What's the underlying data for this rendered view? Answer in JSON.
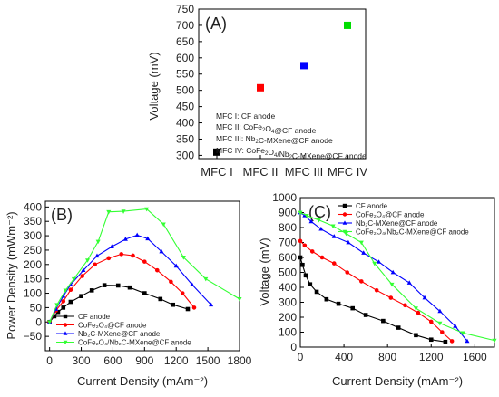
{
  "chart_data": [
    {
      "panel_label": "(A)",
      "type": "scatter",
      "categories": [
        "MFC I",
        "MFC II",
        "MFC III",
        "MFC IV"
      ],
      "values": [
        310,
        508,
        576,
        700
      ],
      "marker_colors": [
        "#000000",
        "#ff0000",
        "#0000ff",
        "#00dd00"
      ],
      "ylabel": "Voltage (mV)",
      "ylim": [
        290,
        750
      ],
      "yticks": [
        300,
        350,
        400,
        450,
        500,
        550,
        600,
        650,
        700,
        750
      ],
      "legend_lines": [
        {
          "prefix": "MFC I: ",
          "body": "CF anode"
        },
        {
          "prefix": "MFC II: ",
          "body": "CoFe",
          "sub1": "2",
          "mid": "O",
          "sub2": "4",
          "tail": "@CF anode"
        },
        {
          "prefix": "MFC III: ",
          "body": "Nb",
          "sub1": "2",
          "mid": "C-MXene@CF anode"
        },
        {
          "prefix": "MFC IV: ",
          "body": "CoFe",
          "sub1": "2",
          "mid": "O",
          "sub2": "4",
          "tail": "/Nb",
          "sub3": "2",
          "tail2": "C-MXene@CF anode"
        }
      ]
    },
    {
      "panel_label": "(B)",
      "type": "line",
      "xlabel": "Current Density (mAm⁻²)",
      "ylabel": "Power Density (mWm⁻²)",
      "xlim": [
        -40,
        1800
      ],
      "ylim": [
        -100,
        420
      ],
      "xticks": [
        0,
        300,
        600,
        900,
        1200,
        1500,
        1800
      ],
      "yticks": [
        -50,
        0,
        50,
        100,
        150,
        200,
        250,
        300,
        350,
        400
      ],
      "series": [
        {
          "name": "CF anode",
          "color": "#000000",
          "marker": "square",
          "points": [
            [
              0,
              0
            ],
            [
              45,
              20
            ],
            [
              80,
              35
            ],
            [
              130,
              50
            ],
            [
              200,
              70
            ],
            [
              300,
              90
            ],
            [
              400,
              110
            ],
            [
              520,
              128
            ],
            [
              650,
              127
            ],
            [
              760,
              120
            ],
            [
              900,
              100
            ],
            [
              1050,
              80
            ],
            [
              1170,
              60
            ],
            [
              1310,
              45
            ]
          ]
        },
        {
          "name": "CoFe₂O₄@CF anode",
          "color": "#ff0000",
          "marker": "circle",
          "points": [
            [
              0,
              0
            ],
            [
              60,
              40
            ],
            [
              130,
              72
            ],
            [
              200,
              112
            ],
            [
              310,
              160
            ],
            [
              430,
              200
            ],
            [
              560,
              222
            ],
            [
              680,
              236
            ],
            [
              790,
              231
            ],
            [
              900,
              210
            ],
            [
              1020,
              180
            ],
            [
              1150,
              140
            ],
            [
              1260,
              100
            ],
            [
              1370,
              50
            ]
          ]
        },
        {
          "name": "Nb₂C-MXene@CF anode",
          "color": "#0000ff",
          "marker": "triangle-up",
          "points": [
            [
              0,
              0
            ],
            [
              60,
              45
            ],
            [
              130,
              90
            ],
            [
              200,
              130
            ],
            [
              320,
              180
            ],
            [
              450,
              230
            ],
            [
              590,
              262
            ],
            [
              720,
              288
            ],
            [
              830,
              302
            ],
            [
              930,
              290
            ],
            [
              1060,
              245
            ],
            [
              1200,
              195
            ],
            [
              1350,
              130
            ],
            [
              1530,
              60
            ]
          ]
        },
        {
          "name": "CoFe₂O₄/Nb₂C-MXene@CF anode",
          "color": "#33ff33",
          "marker": "triangle-down",
          "points": [
            [
              0,
              0
            ],
            [
              70,
              60
            ],
            [
              150,
              110
            ],
            [
              230,
              150
            ],
            [
              360,
              215
            ],
            [
              460,
              280
            ],
            [
              560,
              383
            ],
            [
              700,
              385
            ],
            [
              920,
              393
            ],
            [
              1080,
              340
            ],
            [
              1270,
              225
            ],
            [
              1480,
              150
            ],
            [
              1800,
              80
            ]
          ]
        }
      ]
    },
    {
      "panel_label": "(C)",
      "type": "line",
      "xlabel": "Current Density (mAm⁻²)",
      "ylabel": "Voltage (mV)",
      "xlim": [
        0,
        1780
      ],
      "ylim": [
        0,
        1000
      ],
      "xticks": [
        0,
        400,
        800,
        1200,
        1600
      ],
      "yticks": [
        0,
        100,
        200,
        300,
        400,
        500,
        600,
        700,
        800,
        900,
        1000
      ],
      "series": [
        {
          "name": "CF anode",
          "color": "#000000",
          "marker": "square",
          "points": [
            [
              0,
              600
            ],
            [
              20,
              550
            ],
            [
              50,
              480
            ],
            [
              90,
              420
            ],
            [
              150,
              370
            ],
            [
              240,
              320
            ],
            [
              350,
              290
            ],
            [
              480,
              260
            ],
            [
              600,
              215
            ],
            [
              760,
              175
            ],
            [
              900,
              130
            ],
            [
              1060,
              80
            ],
            [
              1200,
              50
            ],
            [
              1330,
              35
            ]
          ]
        },
        {
          "name": "CoFe₂O₄@CF anode",
          "color": "#ff0000",
          "marker": "circle",
          "points": [
            [
              0,
              710
            ],
            [
              40,
              680
            ],
            [
              110,
              640
            ],
            [
              200,
              600
            ],
            [
              310,
              560
            ],
            [
              430,
              500
            ],
            [
              560,
              440
            ],
            [
              700,
              380
            ],
            [
              830,
              330
            ],
            [
              960,
              280
            ],
            [
              1080,
              230
            ],
            [
              1200,
              170
            ],
            [
              1300,
              100
            ],
            [
              1390,
              40
            ]
          ]
        },
        {
          "name": "Nb₂C-MXene@CF anode",
          "color": "#0000ff",
          "marker": "triangle-up",
          "points": [
            [
              0,
              900
            ],
            [
              40,
              880
            ],
            [
              100,
              840
            ],
            [
              190,
              790
            ],
            [
              310,
              740
            ],
            [
              440,
              700
            ],
            [
              580,
              630
            ],
            [
              720,
              570
            ],
            [
              850,
              500
            ],
            [
              1000,
              430
            ],
            [
              1140,
              330
            ],
            [
              1280,
              240
            ],
            [
              1420,
              140
            ],
            [
              1530,
              40
            ]
          ]
        },
        {
          "name": "CoFe₂O₄/Nb₂C-MXene@CF anode",
          "color": "#33ff33",
          "marker": "triangle-down",
          "points": [
            [
              0,
              900
            ],
            [
              60,
              880
            ],
            [
              170,
              850
            ],
            [
              300,
              810
            ],
            [
              420,
              760
            ],
            [
              560,
              700
            ],
            [
              680,
              560
            ],
            [
              840,
              420
            ],
            [
              1060,
              260
            ],
            [
              1280,
              160
            ],
            [
              1490,
              95
            ],
            [
              1780,
              45
            ]
          ]
        }
      ]
    }
  ]
}
